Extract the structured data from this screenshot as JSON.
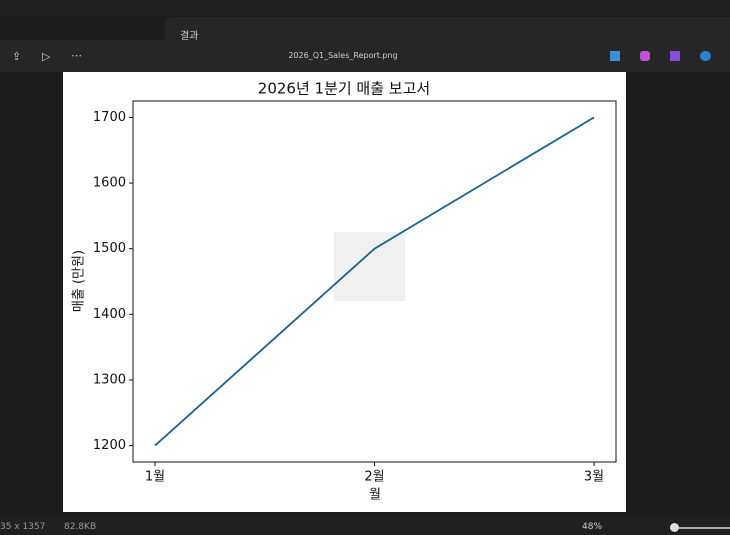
{
  "tab": {
    "title": "결과"
  },
  "toolbar": {
    "filename": "2026_Q1_Sales_Report.png"
  },
  "status": {
    "dimensions": "35 x 1357",
    "file_size": "82.8KB",
    "zoom": "48%"
  },
  "chart_data": {
    "type": "line",
    "title": "2026년 1분기 매출 보고서",
    "x_label": "월",
    "y_label": "매출 (만원)",
    "categories": [
      "1월",
      "2월",
      "3월"
    ],
    "values": [
      1200,
      1500,
      1700
    ],
    "color": "#1a6391",
    "ylim": [
      1175,
      1725
    ],
    "yticks": [
      1200,
      1300,
      1400,
      1500,
      1600,
      1700
    ],
    "grid": false
  }
}
